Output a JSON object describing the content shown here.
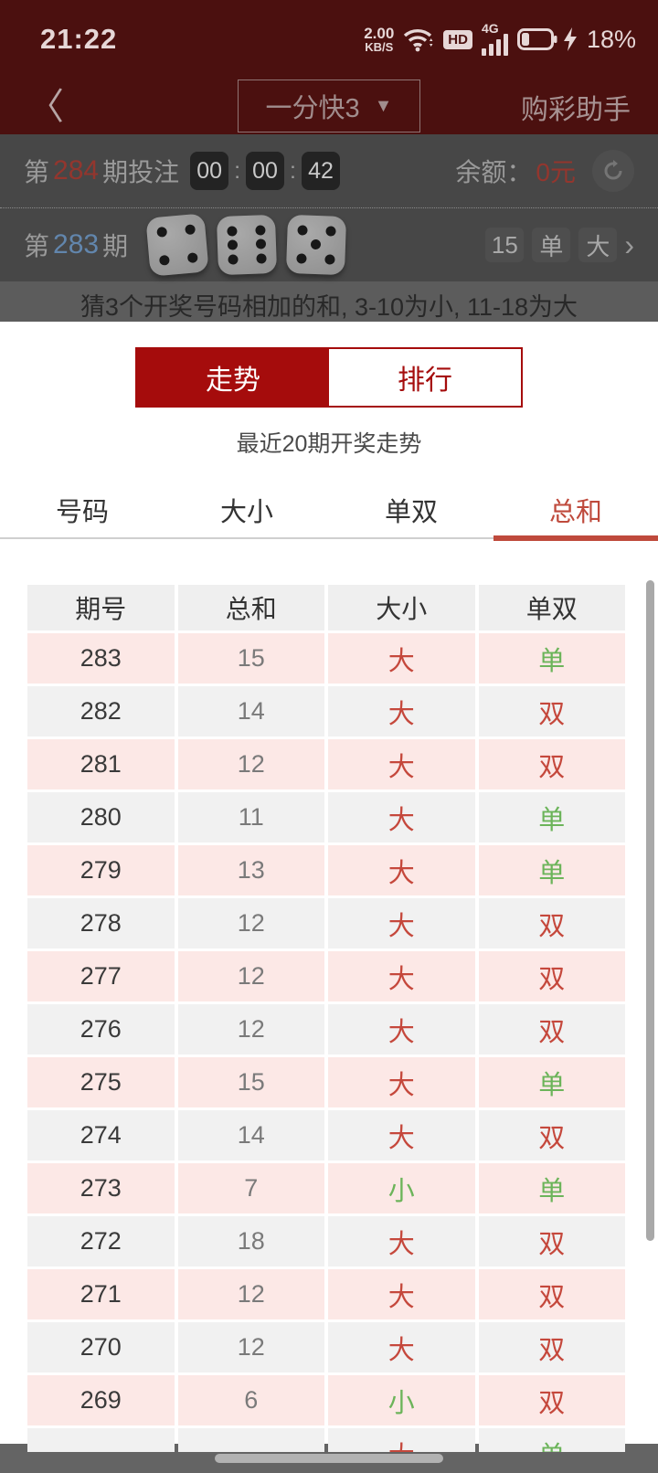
{
  "colors": {
    "maroon": "#4b100f",
    "accent_red": "#a50c0c",
    "tab_red": "#bf4a3c",
    "value_red": "#c5483c",
    "value_green": "#6cb45a",
    "period_blue": "#6286ad"
  },
  "status_bar": {
    "time": "21:22",
    "net_speed_value": "2.00",
    "net_speed_unit": "KB/S",
    "hd_label": "HD",
    "network_label": "4G",
    "battery_percent": "18%"
  },
  "nav": {
    "title": "一分快3",
    "dropdown_arrow": "▼",
    "right_link": "购彩助手"
  },
  "betting_bar": {
    "prefix": "第",
    "period": "284",
    "suffix": "期投注",
    "countdown": [
      "00",
      "00",
      "42"
    ],
    "balance_label": "余额：",
    "balance_value": "0元"
  },
  "last_draw": {
    "prefix": "第",
    "period": "283",
    "suffix": "期",
    "dice": [
      4,
      6,
      5
    ],
    "badges": [
      "15",
      "单",
      "大"
    ],
    "chevron": "›"
  },
  "hint": "猜3个开奖号码相加的和, 3-10为小, 11-18为大",
  "panel": {
    "seg_tabs": [
      {
        "label": "走势",
        "active": true
      },
      {
        "label": "排行",
        "active": false
      }
    ],
    "subtitle": "最近20期开奖走势",
    "tabs": [
      {
        "label": "号码",
        "active": false
      },
      {
        "label": "大小",
        "active": false
      },
      {
        "label": "单双",
        "active": false
      },
      {
        "label": "总和",
        "active": true
      }
    ],
    "table": {
      "headers": [
        "期号",
        "总和",
        "大小",
        "单双"
      ],
      "rows": [
        {
          "period": "283",
          "sum": "15",
          "size": "大",
          "parity": "单"
        },
        {
          "period": "282",
          "sum": "14",
          "size": "大",
          "parity": "双"
        },
        {
          "period": "281",
          "sum": "12",
          "size": "大",
          "parity": "双"
        },
        {
          "period": "280",
          "sum": "11",
          "size": "大",
          "parity": "单"
        },
        {
          "period": "279",
          "sum": "13",
          "size": "大",
          "parity": "单"
        },
        {
          "period": "278",
          "sum": "12",
          "size": "大",
          "parity": "双"
        },
        {
          "period": "277",
          "sum": "12",
          "size": "大",
          "parity": "双"
        },
        {
          "period": "276",
          "sum": "12",
          "size": "大",
          "parity": "双"
        },
        {
          "period": "275",
          "sum": "15",
          "size": "大",
          "parity": "单"
        },
        {
          "period": "274",
          "sum": "14",
          "size": "大",
          "parity": "双"
        },
        {
          "period": "273",
          "sum": "7",
          "size": "小",
          "parity": "单"
        },
        {
          "period": "272",
          "sum": "18",
          "size": "大",
          "parity": "双"
        },
        {
          "period": "271",
          "sum": "12",
          "size": "大",
          "parity": "双"
        },
        {
          "period": "270",
          "sum": "12",
          "size": "大",
          "parity": "双"
        },
        {
          "period": "269",
          "sum": "6",
          "size": "小",
          "parity": "双"
        }
      ],
      "partial_row": {
        "period": "",
        "sum": "",
        "size": "大",
        "parity": "单"
      }
    }
  }
}
